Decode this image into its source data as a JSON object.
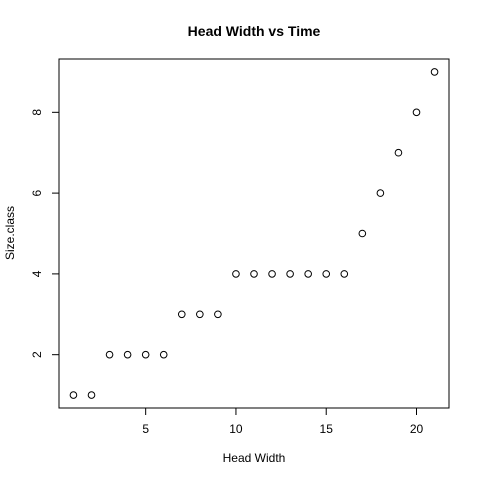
{
  "chart_data": {
    "type": "scatter",
    "title": "Head Width vs Time",
    "xlabel": "Head Width",
    "ylabel": "Size.class",
    "xlim": [
      0.2,
      21.8
    ],
    "ylim": [
      0.68,
      9.32
    ],
    "xticks": [
      5,
      10,
      15,
      20
    ],
    "xtick_labels": [
      "5",
      "10",
      "15",
      "20"
    ],
    "yticks": [
      2,
      4,
      6,
      8
    ],
    "ytick_labels": [
      "2",
      "4",
      "6",
      "8"
    ],
    "grid": false,
    "legend": "none",
    "marker": "open-circle",
    "color": "#000000",
    "x": [
      1,
      2,
      3,
      4,
      5,
      6,
      7,
      8,
      9,
      10,
      11,
      12,
      13,
      14,
      15,
      16,
      17,
      18,
      19,
      20,
      21
    ],
    "y": [
      1,
      1,
      2,
      2,
      2,
      2,
      3,
      3,
      3,
      4,
      4,
      4,
      4,
      4,
      4,
      4,
      5,
      6,
      7,
      8,
      9
    ]
  }
}
